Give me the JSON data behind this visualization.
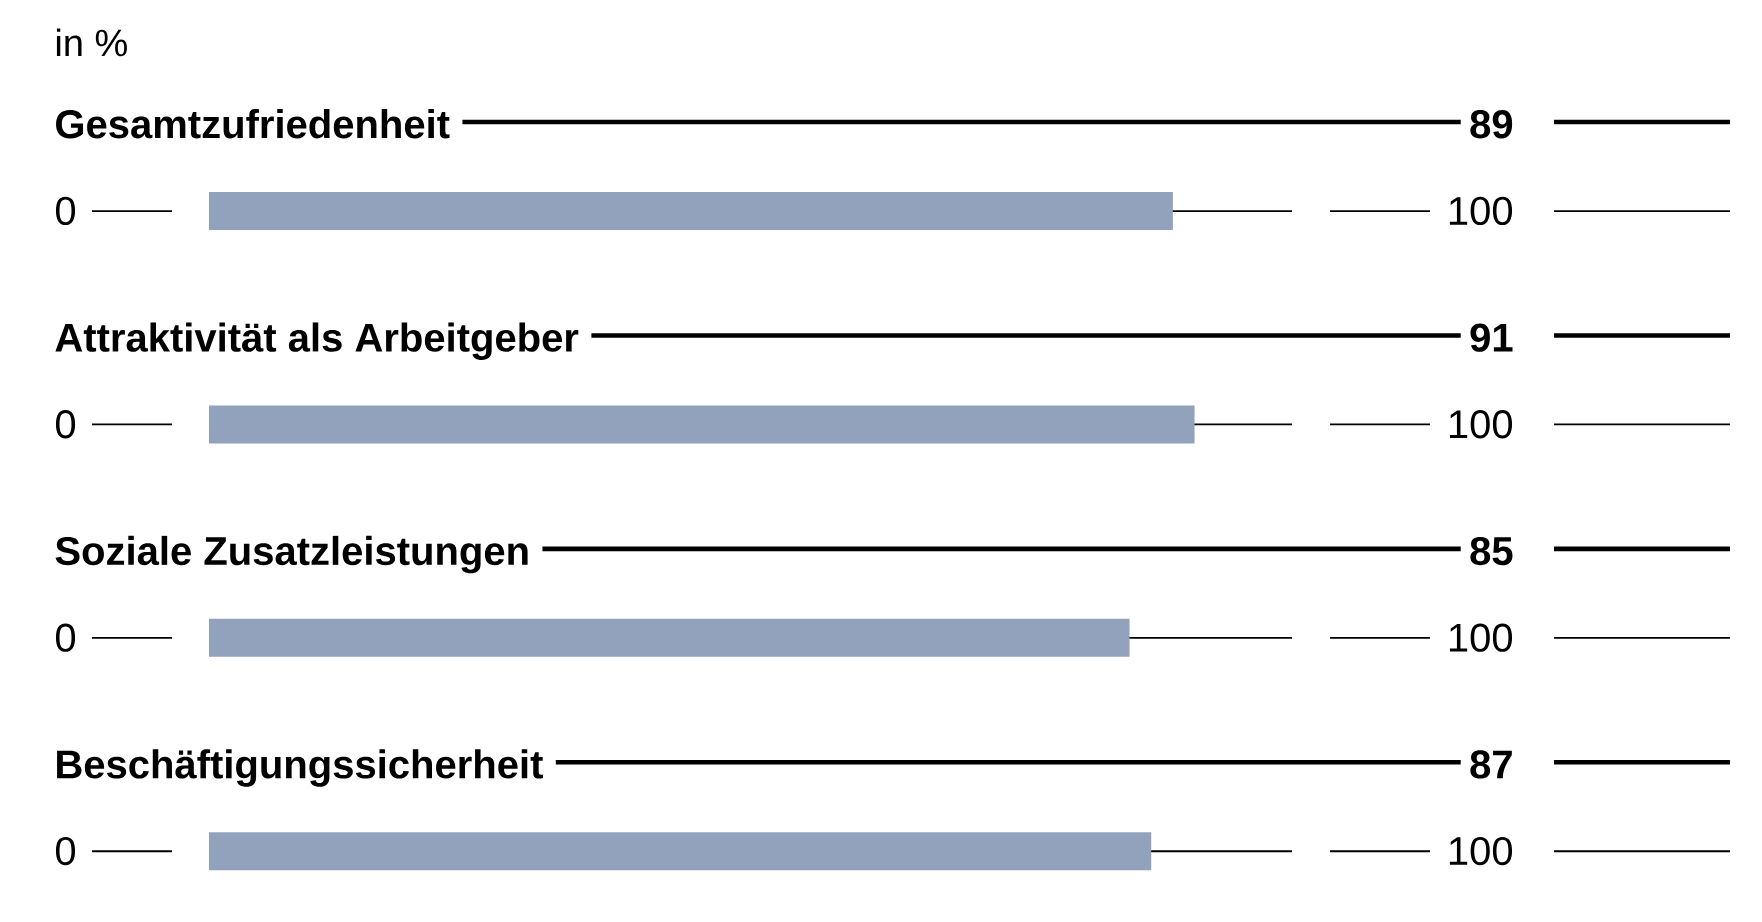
{
  "chart_data": {
    "type": "bar",
    "orientation": "horizontal",
    "xlabel": "in %",
    "categories": [
      "Gesamtzufriedenheit",
      "Attraktivität als Arbeitgeber",
      "Soziale Zusatzleistungen",
      "Beschäftigungssicherheit"
    ],
    "values": [
      89,
      91,
      85,
      87
    ],
    "color": "#92a2bd",
    "xlim": [
      0,
      100
    ],
    "data_labels": true,
    "grid": "y",
    "annotations": [
      "0",
      "100",
      "0",
      "100",
      "0",
      "100",
      "0",
      "100"
    ]
  }
}
